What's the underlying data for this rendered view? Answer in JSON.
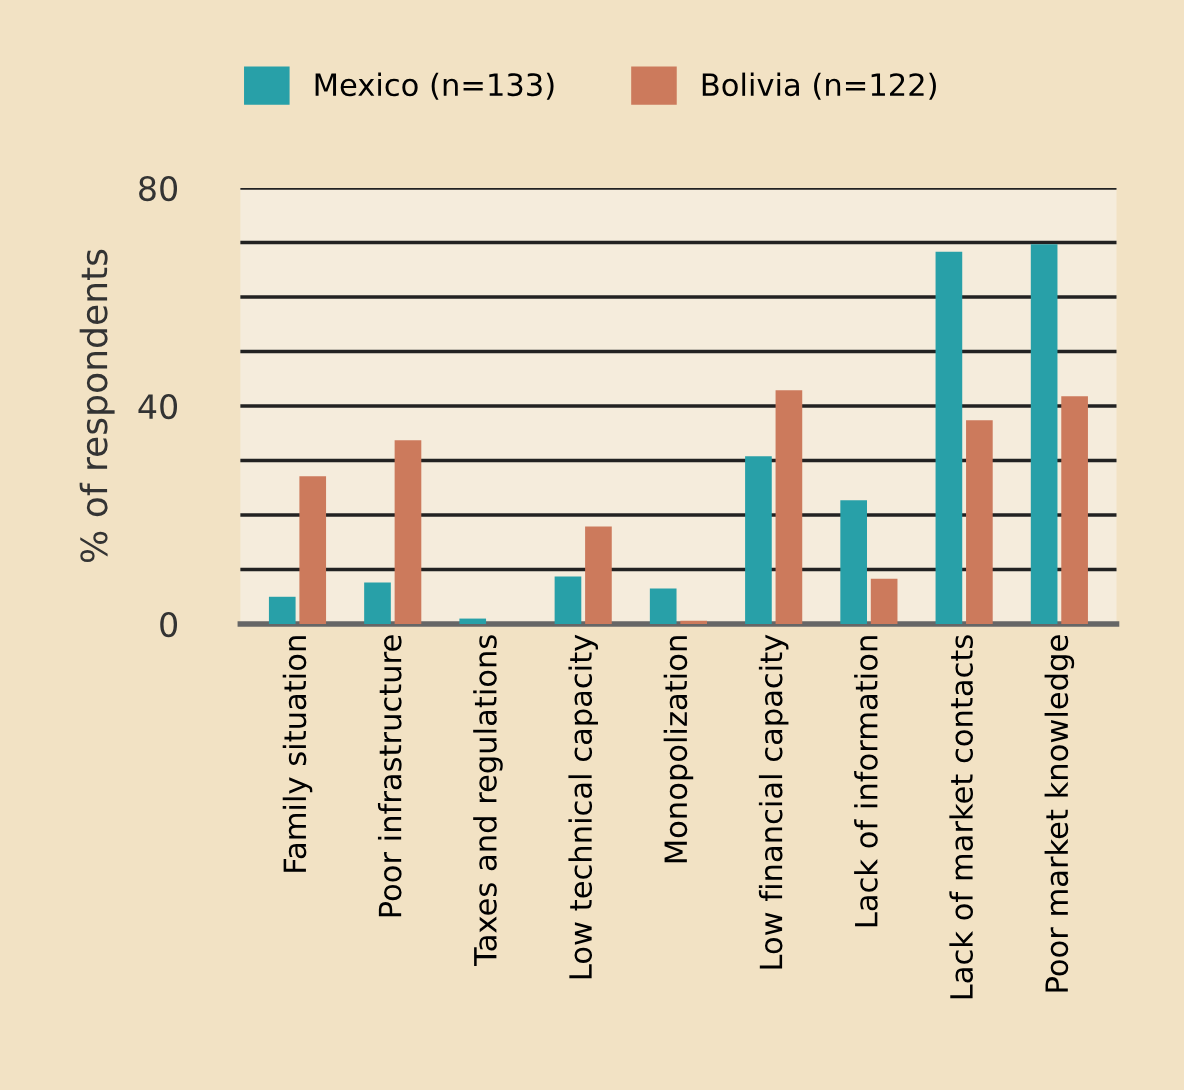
{
  "chart_data": {
    "type": "bar",
    "ylabel": "% of respondents",
    "categories": [
      "Family situation",
      "Poor infrastructure",
      "Taxes and regulations",
      "Low technical capacity",
      "Monopolization",
      "Low financial capacity",
      "Lack of information",
      "Lack of market contacts",
      "Poor market knowledge"
    ],
    "series": [
      {
        "name": "Mexico (n=133)",
        "color": "#28a0a8",
        "values": [
          5.0,
          7.6,
          1.0,
          8.7,
          6.5,
          30.8,
          22.7,
          68.3,
          69.7
        ]
      },
      {
        "name": "Bolivia (n=122)",
        "color": "#cc7a5c",
        "values": [
          27.1,
          33.7,
          0,
          17.9,
          0.6,
          42.9,
          8.3,
          37.4,
          41.8
        ]
      }
    ],
    "ylim": [
      0,
      80
    ],
    "yticks": [
      0,
      {
        "value": 10,
        "label": null
      },
      {
        "value": 20,
        "label": null
      },
      {
        "value": 30,
        "label": null
      },
      40,
      {
        "value": 50,
        "label": null
      },
      {
        "value": 60,
        "label": null
      },
      {
        "value": 70,
        "label": null
      },
      80
    ],
    "grid": "y",
    "legend": "top"
  }
}
